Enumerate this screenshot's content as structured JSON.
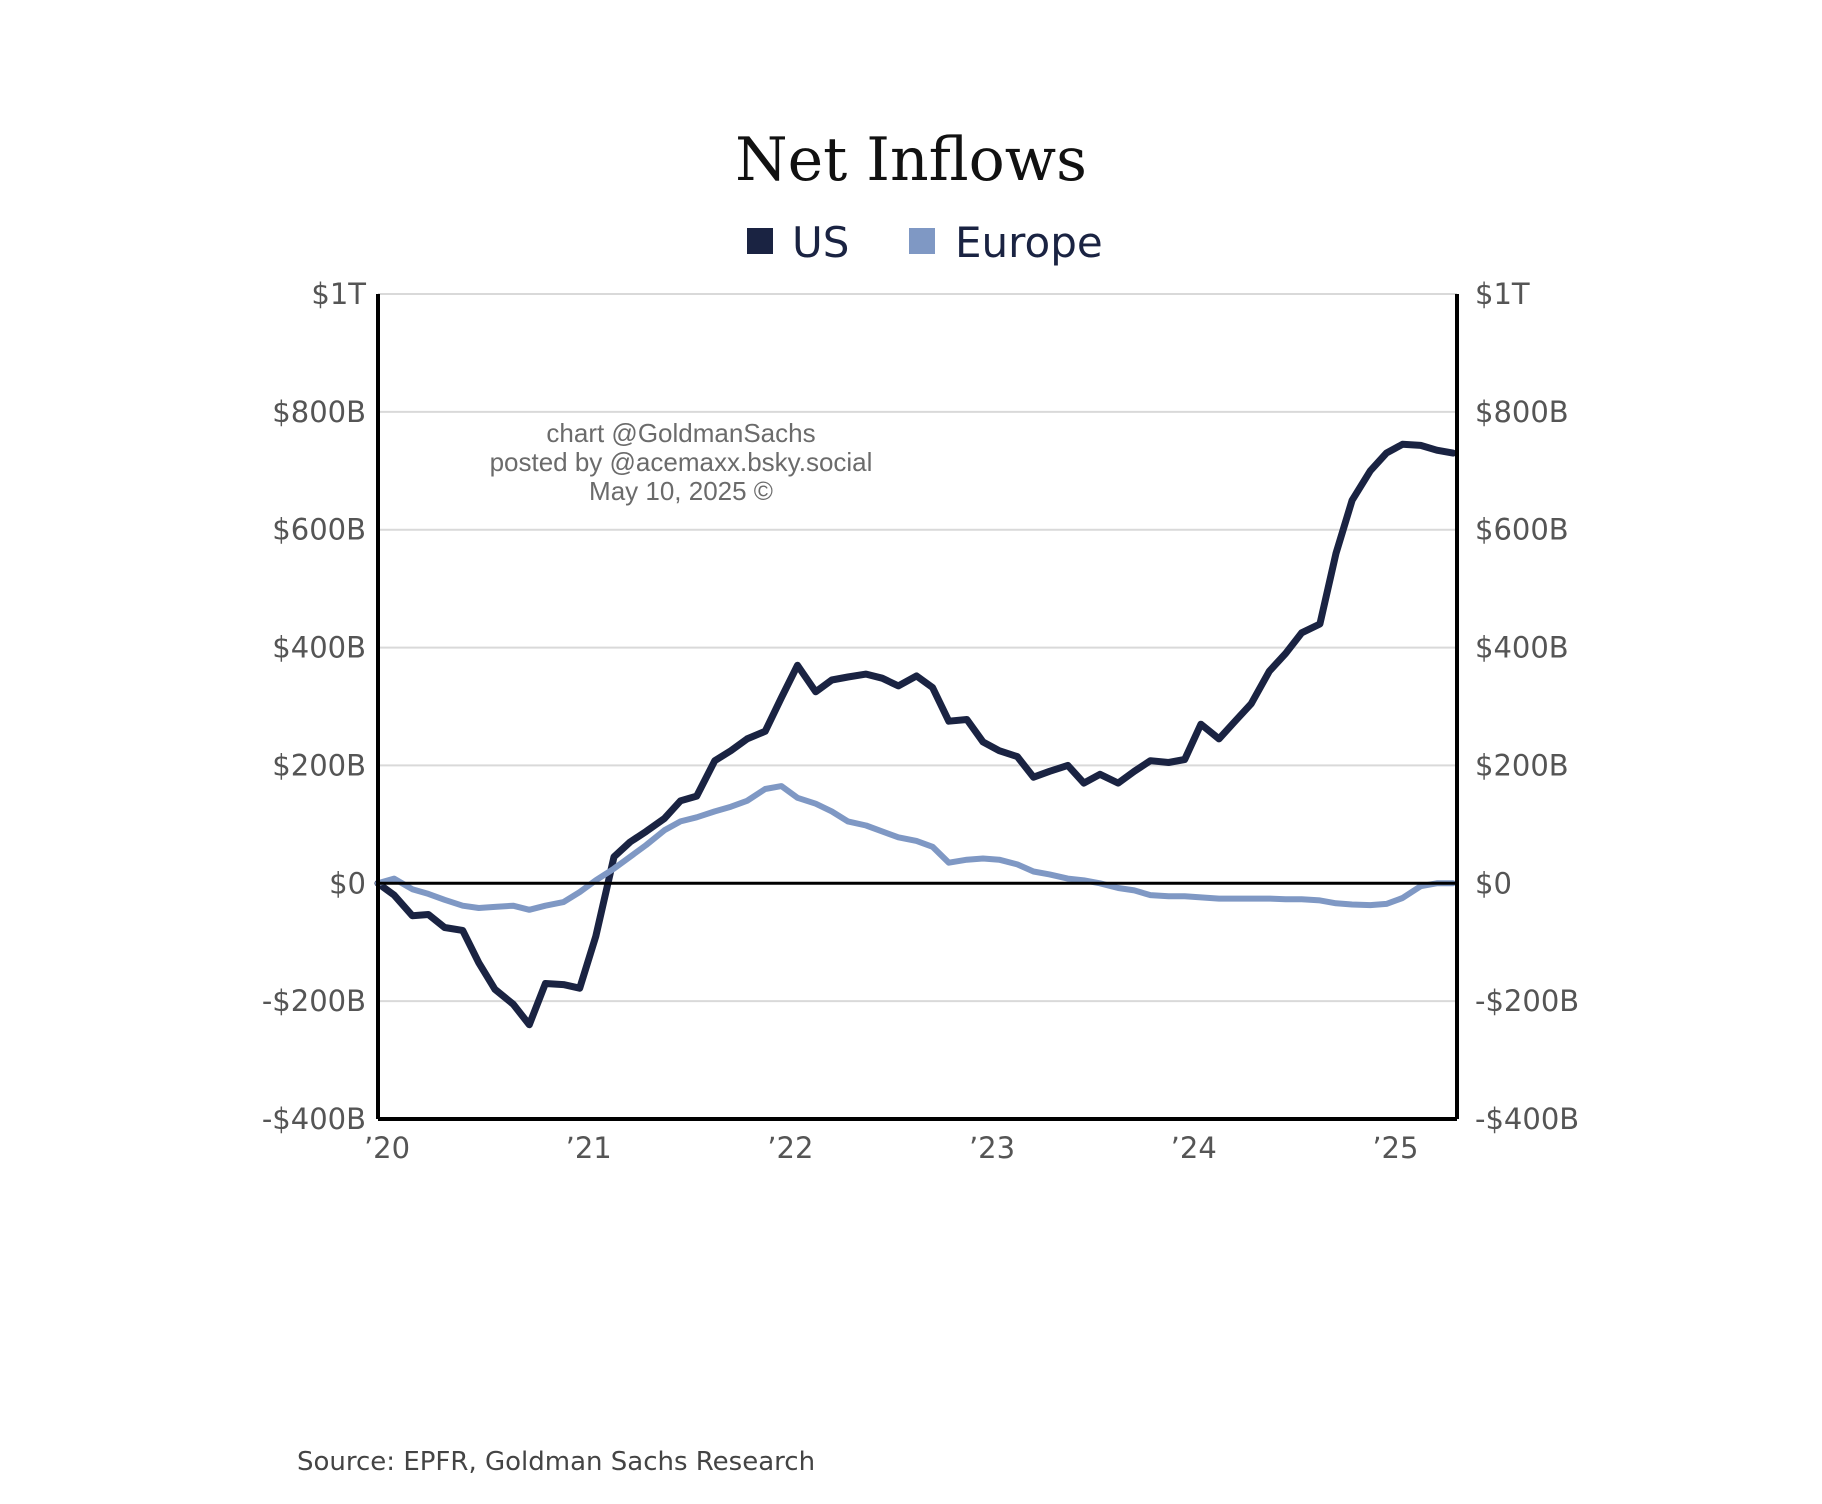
{
  "chart_data": {
    "type": "line",
    "title": "Net Inflows",
    "source": "Source: EPFR, Goldman Sachs Research",
    "watermark": [
      "chart @GoldmanSachs",
      "posted by @acemaxx.bsky.social",
      "May 10, 2025 ©"
    ],
    "ylim": [
      -400,
      1000
    ],
    "yticks_left": [
      "$1T",
      "$800B",
      "$600B",
      "$400B",
      "$200B",
      "$0",
      "-$200B",
      "-$400B"
    ],
    "yticks_right": [
      "$1T",
      "$800B",
      "$600B",
      "$400B",
      "$200B",
      "$0",
      "-$200B",
      "-$400B"
    ],
    "ytick_values": [
      1000,
      800,
      600,
      400,
      200,
      0,
      -200,
      -400
    ],
    "xticks": [
      "’20",
      "’21",
      "’22",
      "’23",
      "’24",
      "’25"
    ],
    "xtick_values": [
      2020.0,
      2021.0,
      2022.0,
      2023.0,
      2024.0,
      2025.0
    ],
    "xlim": [
      2020.0,
      2025.35
    ],
    "legend_position": "top-center",
    "grid": true,
    "series": [
      {
        "name": "US",
        "color": "#1a2342",
        "x": [
          2020.0,
          2020.08,
          2020.17,
          2020.25,
          2020.33,
          2020.42,
          2020.5,
          2020.58,
          2020.67,
          2020.75,
          2020.83,
          2020.92,
          2021.0,
          2021.08,
          2021.17,
          2021.25,
          2021.33,
          2021.42,
          2021.5,
          2021.58,
          2021.67,
          2021.75,
          2021.83,
          2021.92,
          2022.0,
          2022.08,
          2022.17,
          2022.25,
          2022.33,
          2022.42,
          2022.5,
          2022.58,
          2022.67,
          2022.75,
          2022.83,
          2022.92,
          2023.0,
          2023.08,
          2023.17,
          2023.25,
          2023.33,
          2023.42,
          2023.5,
          2023.58,
          2023.67,
          2023.75,
          2023.83,
          2023.92,
          2024.0,
          2024.08,
          2024.17,
          2024.25,
          2024.33,
          2024.42,
          2024.5,
          2024.58,
          2024.67,
          2024.75,
          2024.83,
          2024.92,
          2025.0,
          2025.08,
          2025.17,
          2025.25,
          2025.33
        ],
        "values": [
          0,
          -20,
          -55,
          -53,
          -75,
          -80,
          -135,
          -180,
          -205,
          -240,
          -170,
          -172,
          -178,
          -90,
          45,
          70,
          88,
          110,
          140,
          148,
          208,
          225,
          245,
          258,
          315,
          370,
          325,
          345,
          350,
          355,
          348,
          335,
          352,
          332,
          275,
          278,
          240,
          225,
          215,
          180,
          190,
          200,
          170,
          185,
          170,
          190,
          208,
          205,
          210,
          270,
          245,
          275,
          305,
          360,
          390,
          425,
          440,
          560,
          650,
          700,
          730,
          745,
          743,
          735,
          730
        ],
        "note": ""
      },
      {
        "name": "Europe",
        "color": "#7f98c4",
        "x": [
          2020.0,
          2020.08,
          2020.17,
          2020.25,
          2020.33,
          2020.42,
          2020.5,
          2020.58,
          2020.67,
          2020.75,
          2020.83,
          2020.92,
          2021.0,
          2021.08,
          2021.17,
          2021.25,
          2021.33,
          2021.42,
          2021.5,
          2021.58,
          2021.67,
          2021.75,
          2021.83,
          2021.92,
          2022.0,
          2022.08,
          2022.17,
          2022.25,
          2022.33,
          2022.42,
          2022.5,
          2022.58,
          2022.67,
          2022.75,
          2022.83,
          2022.92,
          2023.0,
          2023.08,
          2023.17,
          2023.25,
          2023.33,
          2023.42,
          2023.5,
          2023.58,
          2023.67,
          2023.75,
          2023.83,
          2023.92,
          2024.0,
          2024.08,
          2024.17,
          2024.25,
          2024.33,
          2024.42,
          2024.5,
          2024.58,
          2024.67,
          2024.75,
          2024.83,
          2024.92,
          2025.0,
          2025.08,
          2025.17,
          2025.25,
          2025.33
        ],
        "values": [
          0,
          8,
          -10,
          -18,
          -28,
          -38,
          -42,
          -40,
          -38,
          -45,
          -38,
          -32,
          -15,
          5,
          25,
          45,
          65,
          90,
          105,
          112,
          122,
          130,
          140,
          160,
          165,
          145,
          135,
          122,
          105,
          98,
          88,
          78,
          72,
          62,
          35,
          40,
          42,
          40,
          32,
          20,
          15,
          8,
          5,
          0,
          -8,
          -12,
          -20,
          -22,
          -22,
          -24,
          -26,
          -26,
          -26,
          -26,
          -27,
          -27,
          -29,
          -34,
          -36,
          -37,
          -35,
          -25,
          -5,
          0,
          0
        ],
        "note": ""
      }
    ]
  }
}
